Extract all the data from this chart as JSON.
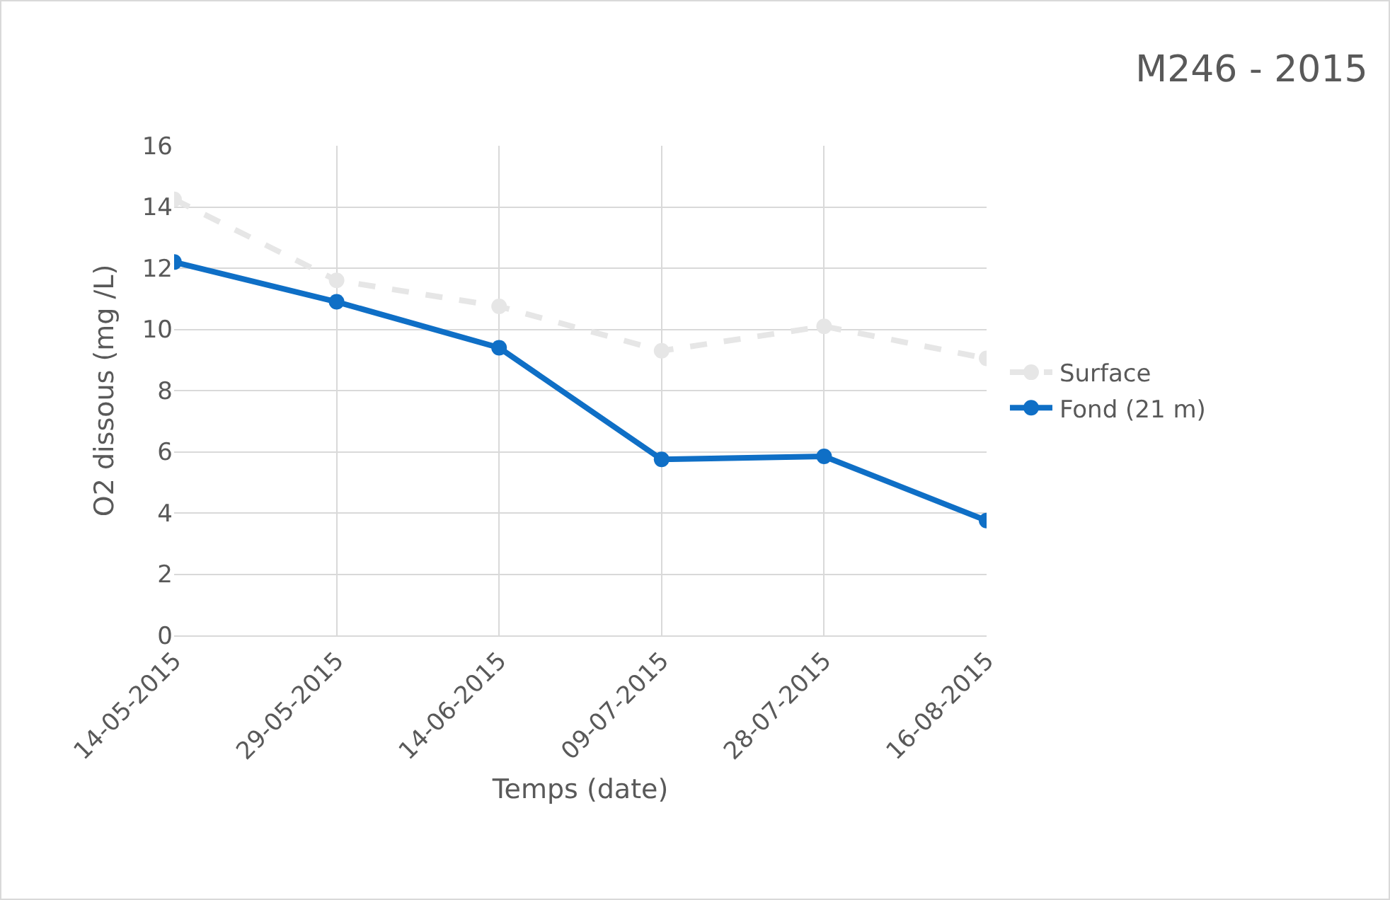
{
  "chart_data": {
    "type": "line",
    "title": "M246 - 2015",
    "xlabel": "Temps (date)",
    "ylabel": "O2 dissous (mg /L)",
    "categories": [
      "14-05-2015",
      "29-05-2015",
      "14-06-2015",
      "09-07-2015",
      "28-07-2015",
      "16-08-2015"
    ],
    "series": [
      {
        "name": "Surface",
        "color": "#e6e6e6",
        "line_style": "dashed",
        "values": [
          14.25,
          11.6,
          10.75,
          9.3,
          10.1,
          9.05
        ]
      },
      {
        "name": "Fond (21 m)",
        "color": "#0f6fc6",
        "line_style": "solid",
        "values": [
          12.2,
          10.9,
          9.4,
          5.75,
          5.85,
          3.75
        ]
      }
    ],
    "ylim": [
      0,
      16
    ],
    "yticks": [
      0,
      2,
      4,
      6,
      8,
      10,
      12,
      14,
      16
    ],
    "grid": true,
    "legend": "right",
    "marker": "circle"
  }
}
